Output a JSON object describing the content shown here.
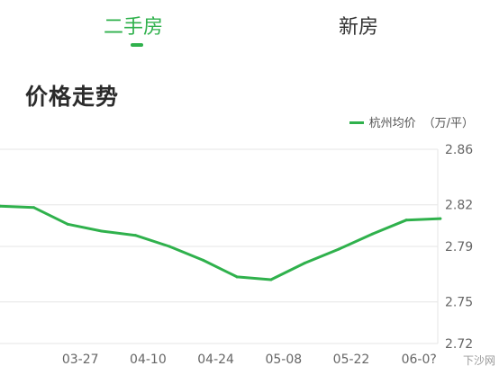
{
  "tabs": [
    {
      "label": "二手房",
      "active": true
    },
    {
      "label": "新房",
      "active": false
    }
  ],
  "section_title": "价格走势",
  "legend": {
    "series_label": "杭州均价",
    "unit": "（万/平）"
  },
  "colors": {
    "accent": "#2fb14c",
    "text": "#333333",
    "grid": "#e6e6e6",
    "axis_text": "#666666"
  },
  "watermark": "下沙网",
  "chart_data": {
    "type": "line",
    "title": "",
    "xlabel": "",
    "ylabel": "",
    "x_tick_labels": [
      "03-27",
      "04-10",
      "04-24",
      "05-08",
      "05-22",
      "06-0?"
    ],
    "y_tick_labels": [
      "2.86",
      "2.82",
      "2.79",
      "2.75",
      "2.72"
    ],
    "ylim": [
      2.72,
      2.86
    ],
    "grid": true,
    "legend_position": "top-right",
    "series": [
      {
        "name": "杭州均价",
        "color": "#2fb14c",
        "points": [
          {
            "x": "03-13",
            "y": 2.819
          },
          {
            "x": "03-20",
            "y": 2.818
          },
          {
            "x": "03-27",
            "y": 2.806
          },
          {
            "x": "04-03",
            "y": 2.801
          },
          {
            "x": "04-10",
            "y": 2.798
          },
          {
            "x": "04-17",
            "y": 2.79
          },
          {
            "x": "04-24",
            "y": 2.78
          },
          {
            "x": "05-01",
            "y": 2.768
          },
          {
            "x": "05-08",
            "y": 2.766
          },
          {
            "x": "05-15",
            "y": 2.778
          },
          {
            "x": "05-22",
            "y": 2.788
          },
          {
            "x": "05-29",
            "y": 2.799
          },
          {
            "x": "06-05",
            "y": 2.809
          },
          {
            "x": "06-12",
            "y": 2.81
          }
        ]
      }
    ]
  }
}
